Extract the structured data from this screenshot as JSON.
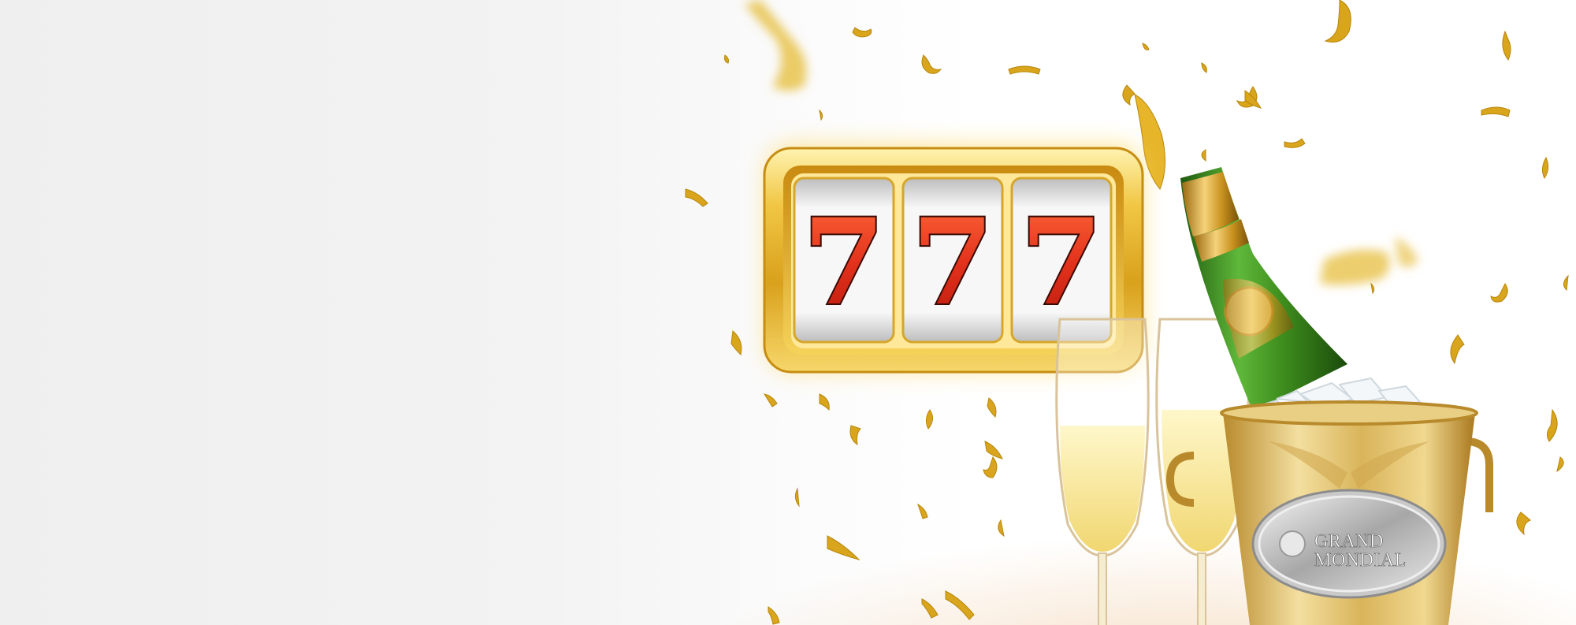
{
  "banner": {
    "slot_symbols": [
      "7",
      "7",
      "7"
    ],
    "bucket_label_line1": "GRAND",
    "bucket_label_line2": "MONDIAL"
  },
  "colors": {
    "gold": "#e3b52c",
    "gold_dark": "#b8860b",
    "seven_red": "#e3321c",
    "bottle_green": "#3f8f1e",
    "background": "#f2f2f2"
  },
  "icons": [
    "slot-machine-icon",
    "champagne-bottle-icon",
    "champagne-glass-icon",
    "ice-bucket-icon",
    "confetti-icon"
  ]
}
